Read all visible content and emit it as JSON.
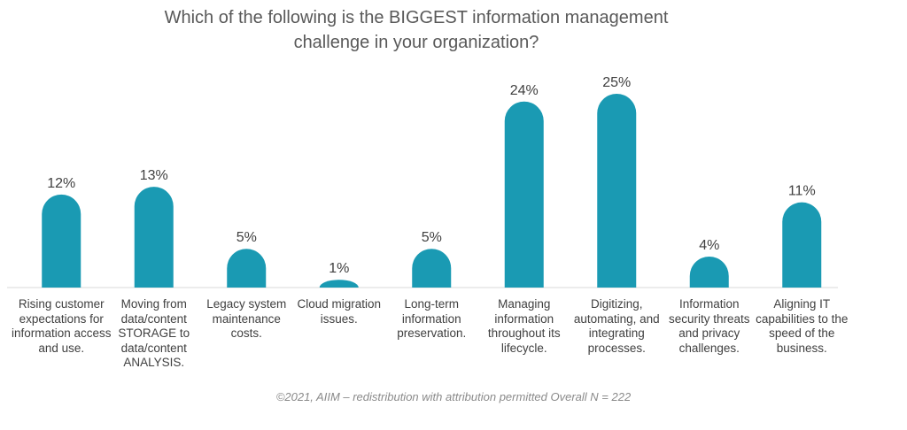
{
  "chart_data": {
    "type": "bar",
    "title": "Which of the following is the BIGGEST information management\nchallenge in  your organization?",
    "categories": [
      "Rising customer expectations for information access and use.",
      "Moving from data/content STORAGE to data/content ANALYSIS.",
      "Legacy system maintenance costs.",
      "Cloud migration issues.",
      "Long-term information preservation.",
      "Managing information throughout its lifecycle.",
      "Digitizing, automating, and integrating processes.",
      "Information security threats and privacy challenges.",
      "Aligning IT capabilities to the speed of the business."
    ],
    "values": [
      12,
      13,
      5,
      1,
      5,
      24,
      25,
      4,
      11
    ],
    "data_labels": [
      "12%",
      "13%",
      "5%",
      "1%",
      "5%",
      "24%",
      "25%",
      "4%",
      "11%"
    ],
    "ylim": [
      0,
      25
    ],
    "xlabel": "",
    "ylabel": "",
    "grid": false,
    "bar_color": "#1a9ab3"
  },
  "footer": "©2021, AIIM – redistribution with attribution permitted Overall N = 222"
}
